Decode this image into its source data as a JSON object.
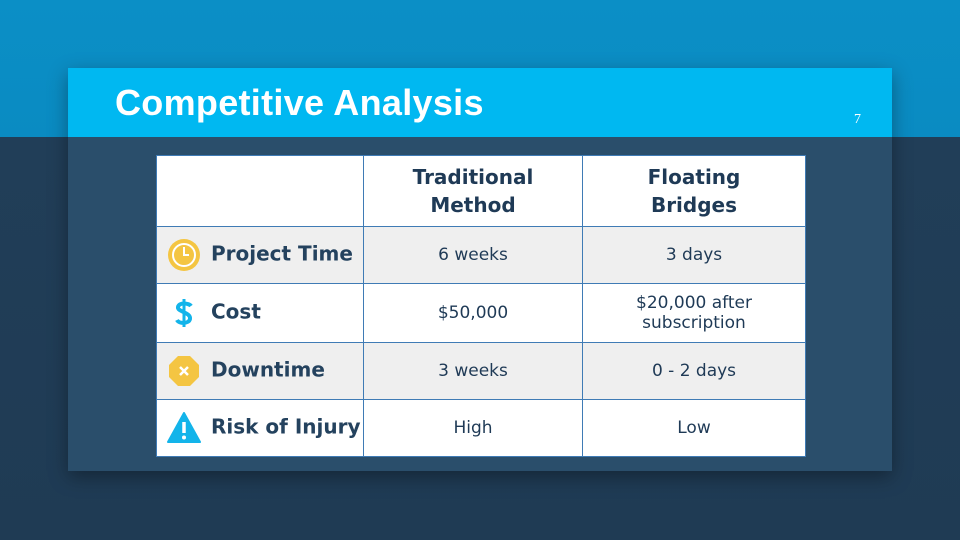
{
  "header": {
    "title": "Competitive Analysis",
    "page_number": "7"
  },
  "table": {
    "columns": [
      "Traditional Method",
      "Floating Bridges"
    ],
    "rows": [
      {
        "label": "Project Time",
        "values": [
          "6 weeks",
          "3 days"
        ]
      },
      {
        "label": "Cost",
        "values": [
          "$50,000",
          "$20,000 after subscription"
        ]
      },
      {
        "label": "Downtime",
        "values": [
          "3 weeks",
          "0 - 2 days"
        ]
      },
      {
        "label": "Risk of Injury",
        "values": [
          "High",
          "Low"
        ]
      }
    ]
  }
}
